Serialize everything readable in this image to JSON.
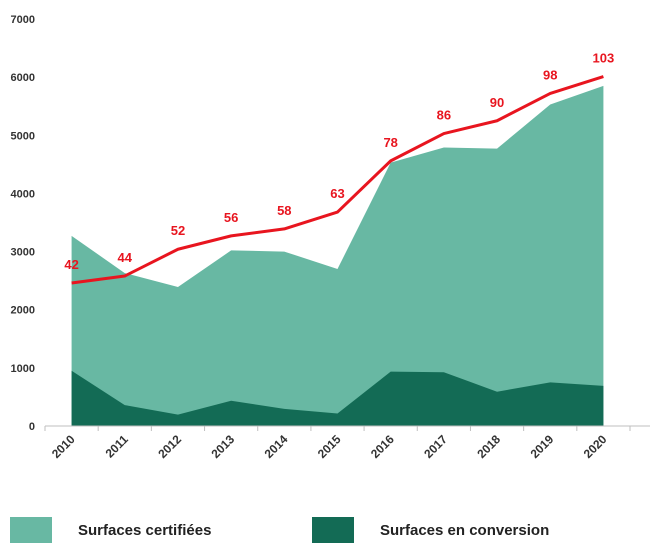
{
  "chart_data": {
    "type": "area",
    "categories": [
      "2010",
      "2011",
      "2012",
      "2013",
      "2014",
      "2015",
      "2016",
      "2017",
      "2018",
      "2019",
      "2020"
    ],
    "ylim": [
      0,
      7000
    ],
    "yticks": [
      0,
      1000,
      2000,
      3000,
      4000,
      5000,
      6000,
      7000
    ],
    "grid": false,
    "legend_position": "bottom",
    "series": [
      {
        "name": "Surfaces certifiées",
        "kind": "area",
        "color": "#68b8a3",
        "values": [
          3270,
          2630,
          2390,
          3020,
          3000,
          2700,
          4530,
          4790,
          4770,
          5530,
          5850
        ]
      },
      {
        "name": "Surfaces en conversion",
        "kind": "area",
        "color": "#136b55",
        "values": [
          950,
          360,
          195,
          435,
          295,
          215,
          935,
          925,
          590,
          750,
          690
        ]
      },
      {
        "kind": "line",
        "color": "#e8151f",
        "values": [
          2460,
          2580,
          3040,
          3270,
          3390,
          3680,
          4560,
          5030,
          5250,
          5720,
          6010
        ],
        "labels": [
          "42",
          "44",
          "52",
          "56",
          "58",
          "63",
          "78",
          "86",
          "90",
          "98",
          "103"
        ]
      }
    ]
  }
}
